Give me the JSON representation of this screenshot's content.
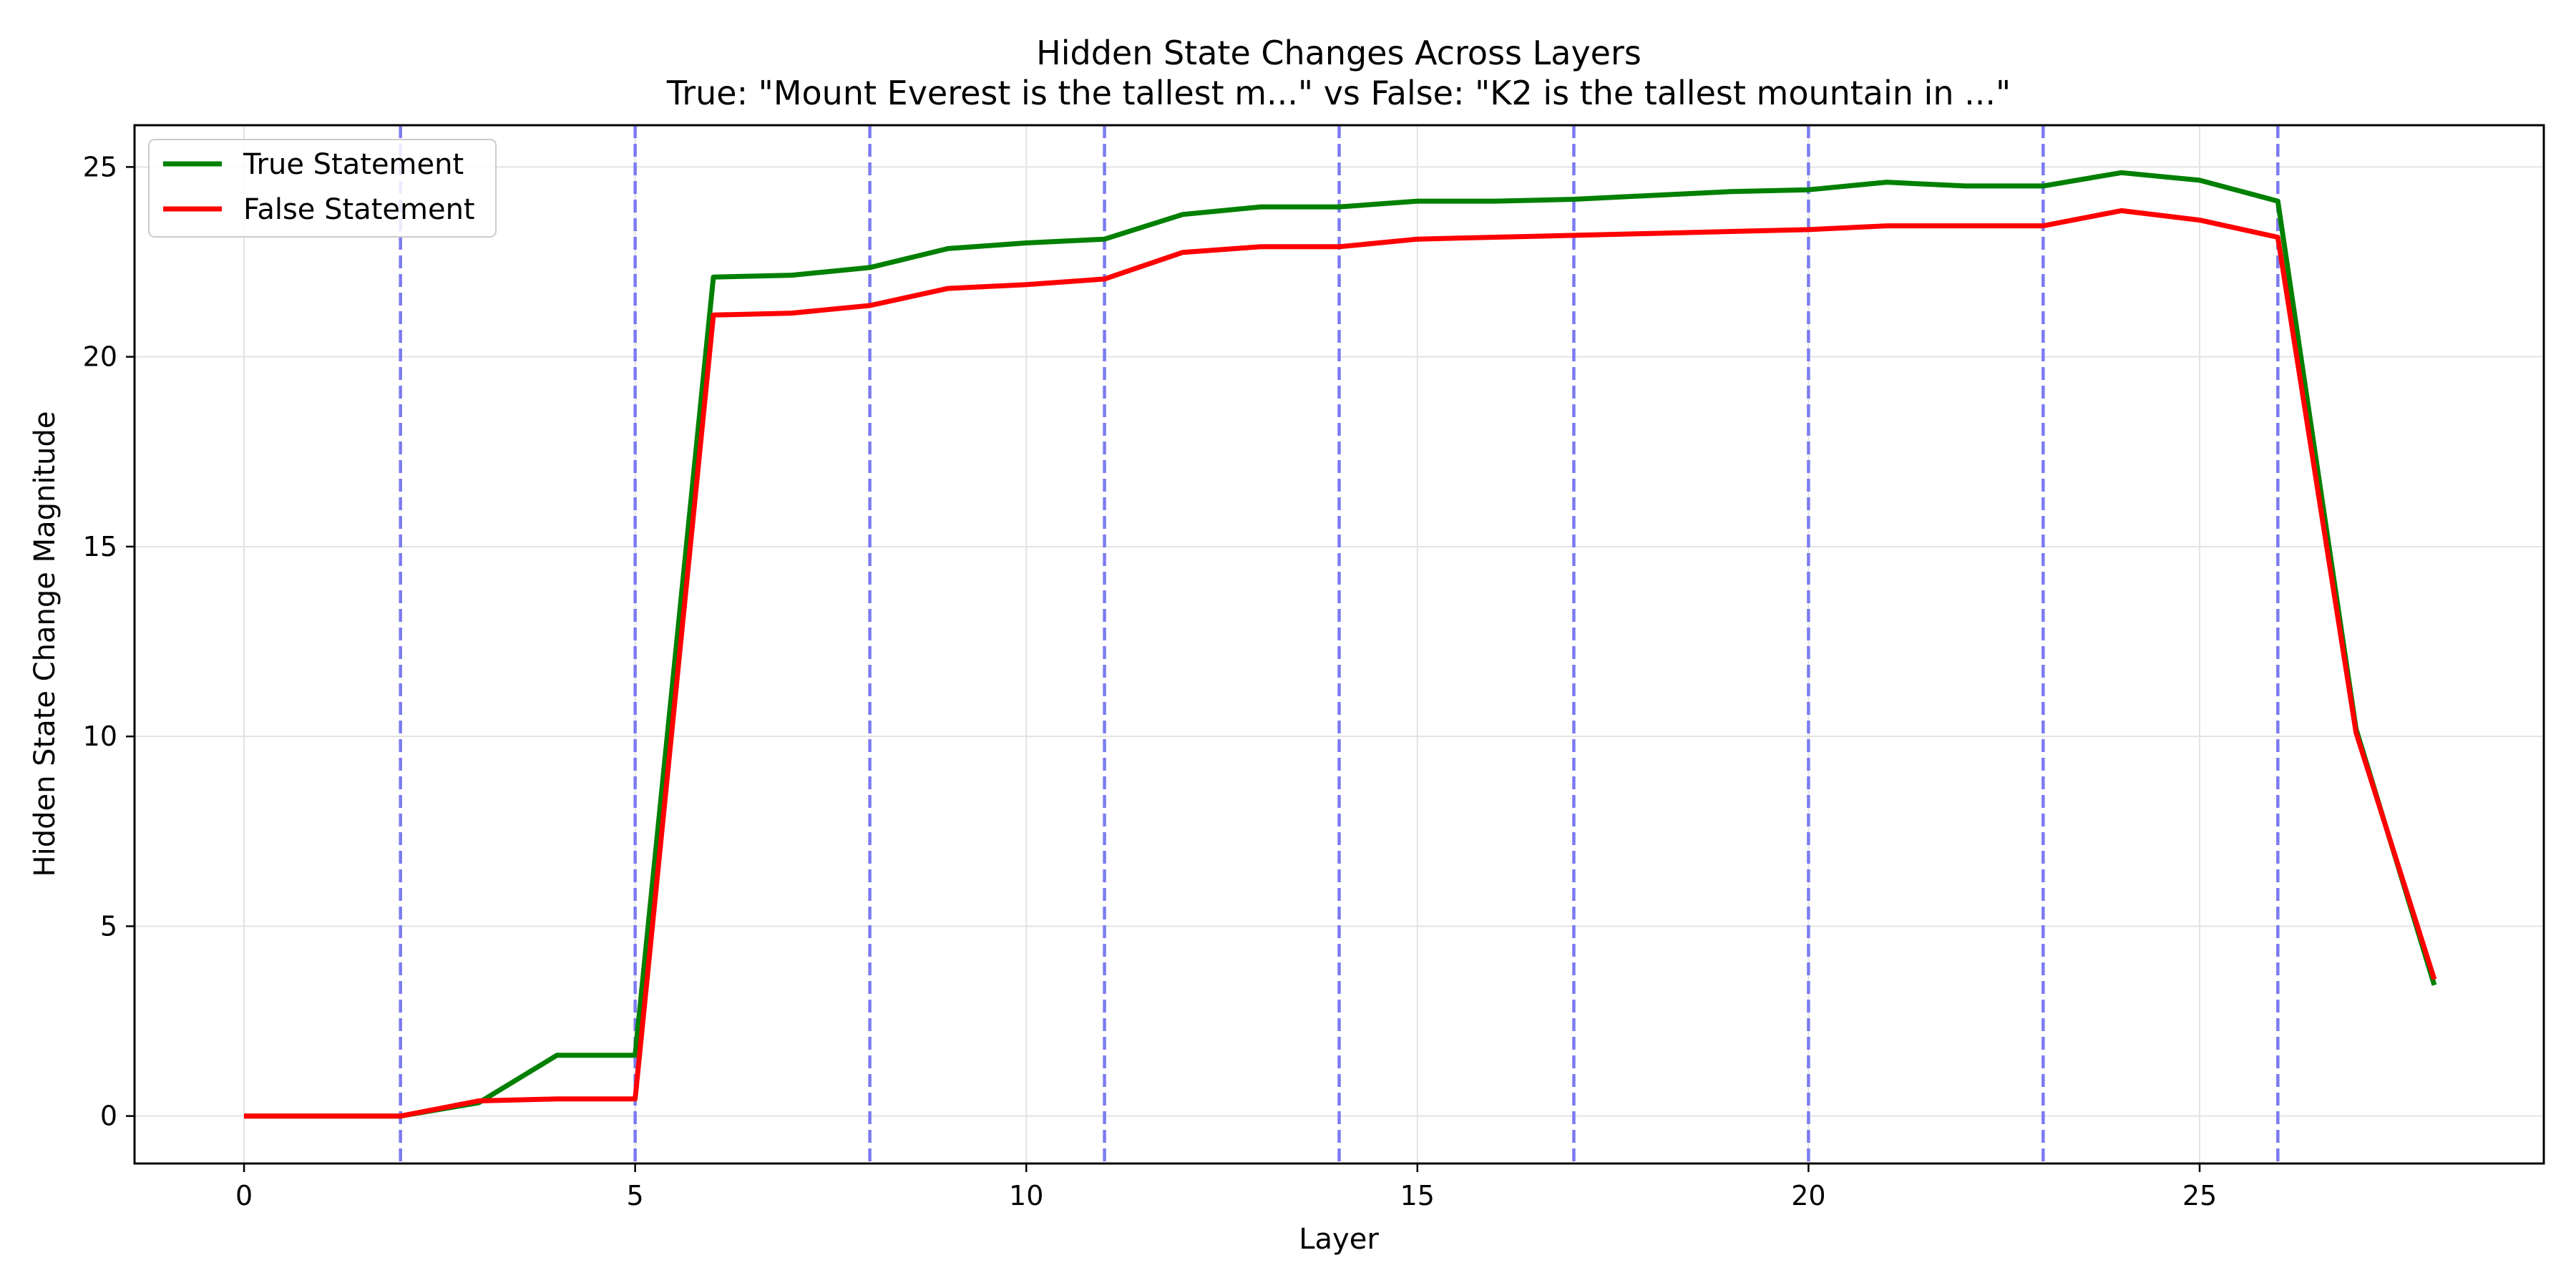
{
  "chart_data": {
    "type": "line",
    "title": "Hidden State Changes Across Layers",
    "subtitle": "True: \"Mount Everest is the tallest m...\" vs False: \"K2 is the tallest mountain in ...\"",
    "xlabel": "Layer",
    "ylabel": "Hidden State Change Magnitude",
    "xlim": [
      -1.4,
      29.4
    ],
    "ylim": [
      -1.25,
      26.1
    ],
    "xticks": [
      0,
      5,
      10,
      15,
      20,
      25
    ],
    "yticks": [
      0,
      5,
      10,
      15,
      20,
      25
    ],
    "grid": true,
    "legend_position": "upper-left",
    "vlines": [
      2,
      5,
      8,
      11,
      14,
      17,
      20,
      23,
      26
    ],
    "vline_color": "#7b7bf0",
    "x": [
      0,
      1,
      2,
      3,
      4,
      5,
      6,
      7,
      8,
      9,
      10,
      11,
      12,
      13,
      14,
      15,
      16,
      17,
      18,
      19,
      20,
      21,
      22,
      23,
      24,
      25,
      26,
      27,
      28
    ],
    "series": [
      {
        "name": "True Statement",
        "color": "#008000",
        "values": [
          0,
          0,
          0,
          0.35,
          1.6,
          1.6,
          22.1,
          22.15,
          22.35,
          22.85,
          23.0,
          23.1,
          23.75,
          23.95,
          23.95,
          24.1,
          24.1,
          24.15,
          24.25,
          24.35,
          24.4,
          24.6,
          24.5,
          24.5,
          24.85,
          24.65,
          24.1,
          10.2,
          3.45
        ]
      },
      {
        "name": "False Statement",
        "color": "#ff0000",
        "values": [
          0,
          0,
          0,
          0.4,
          0.45,
          0.45,
          21.1,
          21.15,
          21.35,
          21.8,
          21.9,
          22.05,
          22.75,
          22.9,
          22.9,
          23.1,
          23.15,
          23.2,
          23.25,
          23.3,
          23.35,
          23.45,
          23.45,
          23.45,
          23.85,
          23.6,
          23.15,
          10.1,
          3.6
        ]
      }
    ]
  }
}
